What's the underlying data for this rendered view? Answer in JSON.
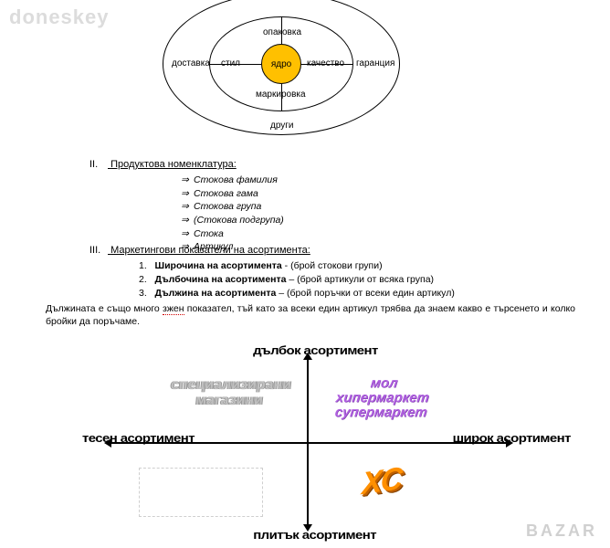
{
  "watermark_top": "doneskey",
  "watermark_bottom": "BAZAR",
  "diagram": {
    "core": "ядро",
    "core_fill": "#ffc000",
    "inner": {
      "top": "опаковка",
      "right": "качество",
      "bottom": "маркировка",
      "left": "стил"
    },
    "outer": {
      "left": "доставка",
      "right": "гаранция",
      "bottom": "други"
    }
  },
  "section2": {
    "roman": "II.",
    "title": "Продуктова номенклатура:",
    "items": [
      "Стокова фамилия",
      "Стокова гама",
      "Стокова група",
      "(Стокова подгрупа)",
      "Стока",
      "Артикул"
    ],
    "bullet": "⇒"
  },
  "section3": {
    "roman": "III.",
    "title": "Маркетингови показатели на асортимента:",
    "items": [
      {
        "n": "1.",
        "term": "Широчина на асортимента",
        "rest": " - (брой стокови групи)"
      },
      {
        "n": "2.",
        "term": "Дълбочина на асортимента",
        "rest": " – (брой артикули от всяка група)"
      },
      {
        "n": "3.",
        "term": "Дължина на асортимента",
        "rest": " – (брой поръчки от всеки един артикул)"
      }
    ]
  },
  "paragraph": {
    "pre": "Дължината е също много ",
    "err": "зжен",
    "post": " показател, тъй като за всеки един артикул трябва да знаем какво е търсенето и колко бройки да поръчаме."
  },
  "quadrant": {
    "axis_top": "дълбок асортимент",
    "axis_bottom": "плитък асортимент",
    "axis_left": "тесен асортимент",
    "axis_right": "широк асортимент",
    "q2_line1": "специализирани",
    "q2_line2": "магазини",
    "q1_line1": "мол",
    "q1_line2": "хипермаркет",
    "q1_line3": "супермаркет",
    "q4": "XC",
    "colors": {
      "q2": "#c0c0c0",
      "q1": "#b060e0",
      "q4": "#ff9000",
      "axis": "#000000"
    }
  }
}
